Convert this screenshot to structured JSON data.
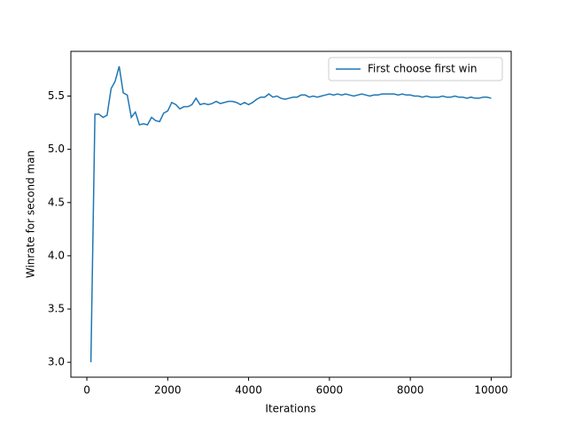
{
  "chart_data": {
    "type": "line",
    "x": [
      100,
      200,
      300,
      400,
      500,
      600,
      700,
      800,
      900,
      1000,
      1100,
      1200,
      1300,
      1400,
      1500,
      1600,
      1700,
      1800,
      1900,
      2000,
      2100,
      2200,
      2300,
      2400,
      2500,
      2600,
      2700,
      2800,
      2900,
      3000,
      3100,
      3200,
      3300,
      3400,
      3500,
      3600,
      3700,
      3800,
      3900,
      4000,
      4100,
      4200,
      4300,
      4400,
      4500,
      4600,
      4700,
      4800,
      4900,
      5000,
      5100,
      5200,
      5300,
      5400,
      5500,
      5600,
      5700,
      5800,
      5900,
      6000,
      6100,
      6200,
      6300,
      6400,
      6500,
      6600,
      6700,
      6800,
      6900,
      7000,
      7100,
      7200,
      7300,
      7400,
      7500,
      7600,
      7700,
      7800,
      7900,
      8000,
      8100,
      8200,
      8300,
      8400,
      8500,
      8600,
      8700,
      8800,
      8900,
      9000,
      9100,
      9200,
      9300,
      9400,
      9500,
      9600,
      9700,
      9800,
      9900,
      10000
    ],
    "series": [
      {
        "name": "First choose first win",
        "color": "#1f77b4",
        "values": [
          3.0,
          5.33,
          5.33,
          5.3,
          5.32,
          5.57,
          5.64,
          5.78,
          5.53,
          5.51,
          5.3,
          5.35,
          5.23,
          5.24,
          5.23,
          5.3,
          5.27,
          5.26,
          5.34,
          5.36,
          5.44,
          5.42,
          5.38,
          5.4,
          5.4,
          5.42,
          5.48,
          5.42,
          5.43,
          5.42,
          5.43,
          5.45,
          5.43,
          5.44,
          5.45,
          5.45,
          5.44,
          5.42,
          5.44,
          5.42,
          5.44,
          5.47,
          5.49,
          5.49,
          5.52,
          5.49,
          5.5,
          5.48,
          5.47,
          5.48,
          5.49,
          5.49,
          5.51,
          5.51,
          5.49,
          5.5,
          5.49,
          5.5,
          5.51,
          5.52,
          5.51,
          5.52,
          5.51,
          5.52,
          5.51,
          5.5,
          5.51,
          5.52,
          5.51,
          5.5,
          5.51,
          5.51,
          5.52,
          5.52,
          5.52,
          5.52,
          5.51,
          5.52,
          5.51,
          5.51,
          5.5,
          5.5,
          5.49,
          5.5,
          5.49,
          5.49,
          5.49,
          5.5,
          5.49,
          5.49,
          5.5,
          5.49,
          5.49,
          5.48,
          5.49,
          5.48,
          5.48,
          5.49,
          5.49,
          5.48
        ]
      }
    ],
    "xlabel": "Iterations",
    "ylabel": "Winrate for second man",
    "xlim": [
      -395,
      10495
    ],
    "ylim": [
      2.86,
      5.92
    ],
    "xticks": [
      0,
      2000,
      4000,
      6000,
      8000,
      10000
    ],
    "yticks": [
      {
        "value": 3,
        "label": "3.0"
      },
      3.5,
      {
        "value": 4,
        "label": "4.0"
      },
      4.5,
      {
        "value": 5,
        "label": "5.0"
      },
      5.5
    ],
    "legend": "upper right"
  }
}
